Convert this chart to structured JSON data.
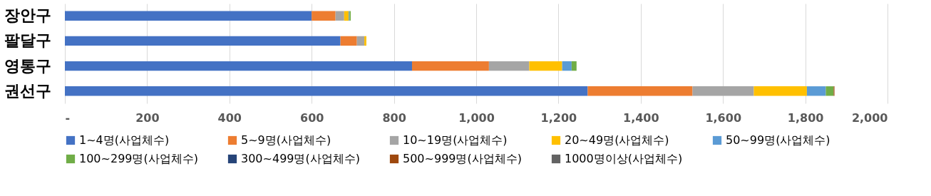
{
  "chart_data": {
    "type": "bar",
    "orientation": "horizontal",
    "stacked": true,
    "categories": [
      "장안구",
      "팔달구",
      "영통구",
      "권선구"
    ],
    "series": [
      {
        "name": "1~4명(사업체수)",
        "color": "#4472c4",
        "values": [
          600,
          670,
          844,
          1271
        ]
      },
      {
        "name": "5~9명(사업체수)",
        "color": "#ed7d31",
        "values": [
          58,
          40,
          187,
          255
        ]
      },
      {
        "name": "10~19명(사업체수)",
        "color": "#a5a5a5",
        "values": [
          21,
          18,
          98,
          149
        ]
      },
      {
        "name": "20~49명(사업체수)",
        "color": "#ffc000",
        "values": [
          11,
          5,
          80,
          129
        ]
      },
      {
        "name": "50~99명(사업체수)",
        "color": "#5b9bd5",
        "values": [
          2,
          null,
          23,
          46
        ]
      },
      {
        "name": "100~299명(사업체수)",
        "color": "#70ad47",
        "values": [
          3,
          null,
          12,
          19
        ]
      },
      {
        "name": "300~499명(사업체수)",
        "color": "#264478",
        "values": [
          null,
          null,
          null,
          null
        ]
      },
      {
        "name": "500~999명(사업체수)",
        "color": "#9e480e",
        "values": [
          null,
          null,
          null,
          2
        ]
      },
      {
        "name": "1000명이상(사업체수)",
        "color": "#636363",
        "values": [
          null,
          null,
          null,
          null
        ]
      }
    ],
    "xlim": [
      0,
      2000
    ],
    "xticks": [
      {
        "value": 0,
        "label": "-"
      },
      200,
      400,
      600,
      800,
      {
        "value": 1000,
        "label": "1,000"
      },
      {
        "value": 1200,
        "label": "1,200"
      },
      {
        "value": 1400,
        "label": "1,400"
      },
      {
        "value": 1600,
        "label": "1,600"
      },
      {
        "value": 1800,
        "label": "1,800"
      },
      {
        "value": 2000,
        "label": "2,000"
      }
    ],
    "grid": "x",
    "legend": "bottom"
  }
}
